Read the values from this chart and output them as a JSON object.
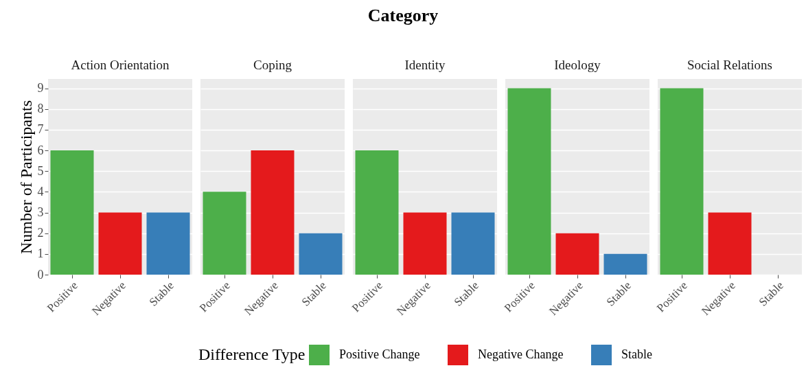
{
  "chart_data": [
    {
      "type": "bar",
      "title": "Action Orientation",
      "annotations": [
        "Category"
      ],
      "ylabel": "Number of Participants",
      "grid": true,
      "categories": [
        "Positive",
        "Negative",
        "Stable"
      ],
      "ylim": [
        0,
        9.45
      ],
      "yticks": [
        0,
        1,
        2,
        3,
        4,
        5,
        6,
        7,
        8,
        9
      ],
      "series": [
        {
          "color": "#4daf4a",
          "values": [
            6,
            null,
            null
          ]
        },
        {
          "color": "#e41a1c",
          "values": [
            null,
            3,
            null
          ]
        },
        {
          "color": "#377eb8",
          "values": [
            null,
            null,
            3
          ]
        }
      ]
    },
    {
      "type": "bar",
      "title": "Coping",
      "grid": true,
      "tick_labels": "x",
      "categories": [
        "Positive",
        "Negative",
        "Stable"
      ],
      "ylim": [
        0,
        9.45
      ],
      "yticks": [
        0,
        1,
        2,
        3,
        4,
        5,
        6,
        7,
        8,
        9
      ],
      "series": [
        {
          "color": "#4daf4a",
          "values": [
            4,
            null,
            null
          ]
        },
        {
          "color": "#e41a1c",
          "values": [
            null,
            6,
            null
          ]
        },
        {
          "color": "#377eb8",
          "values": [
            null,
            null,
            2
          ]
        }
      ]
    },
    {
      "type": "bar",
      "title": "Identity",
      "legend_title": "Difference Type",
      "legend": "bottom",
      "grid": true,
      "tick_labels": "x",
      "categories": [
        "Positive",
        "Negative",
        "Stable"
      ],
      "ylim": [
        0,
        9.45
      ],
      "yticks": [
        0,
        1,
        2,
        3,
        4,
        5,
        6,
        7,
        8,
        9
      ],
      "series": [
        {
          "name": "Positive Change",
          "color": "#4daf4a",
          "values": [
            6,
            null,
            null
          ]
        },
        {
          "name": "Negative Change",
          "color": "#e41a1c",
          "values": [
            null,
            3,
            null
          ]
        },
        {
          "name": "Stable",
          "color": "#377eb8",
          "values": [
            null,
            null,
            3
          ]
        }
      ]
    },
    {
      "type": "bar",
      "title": "Ideology",
      "grid": true,
      "tick_labels": "x",
      "categories": [
        "Positive",
        "Negative",
        "Stable"
      ],
      "ylim": [
        0,
        9.45
      ],
      "yticks": [
        0,
        1,
        2,
        3,
        4,
        5,
        6,
        7,
        8,
        9
      ],
      "series": [
        {
          "color": "#4daf4a",
          "values": [
            9,
            null,
            null
          ]
        },
        {
          "color": "#e41a1c",
          "values": [
            null,
            2,
            null
          ]
        },
        {
          "color": "#377eb8",
          "values": [
            null,
            null,
            1
          ]
        }
      ]
    },
    {
      "type": "bar",
      "title": "Social Relations",
      "grid": true,
      "tick_labels": "x",
      "categories": [
        "Positive",
        "Negative",
        "Stable"
      ],
      "ylim": [
        0,
        9.45
      ],
      "yticks": [
        0,
        1,
        2,
        3,
        4,
        5,
        6,
        7,
        8,
        9
      ],
      "series": [
        {
          "color": "#4daf4a",
          "values": [
            9,
            null,
            null
          ]
        },
        {
          "color": "#e41a1c",
          "values": [
            null,
            3,
            null
          ]
        },
        {
          "color": "#377eb8",
          "values": [
            null,
            null,
            0
          ]
        }
      ]
    }
  ]
}
